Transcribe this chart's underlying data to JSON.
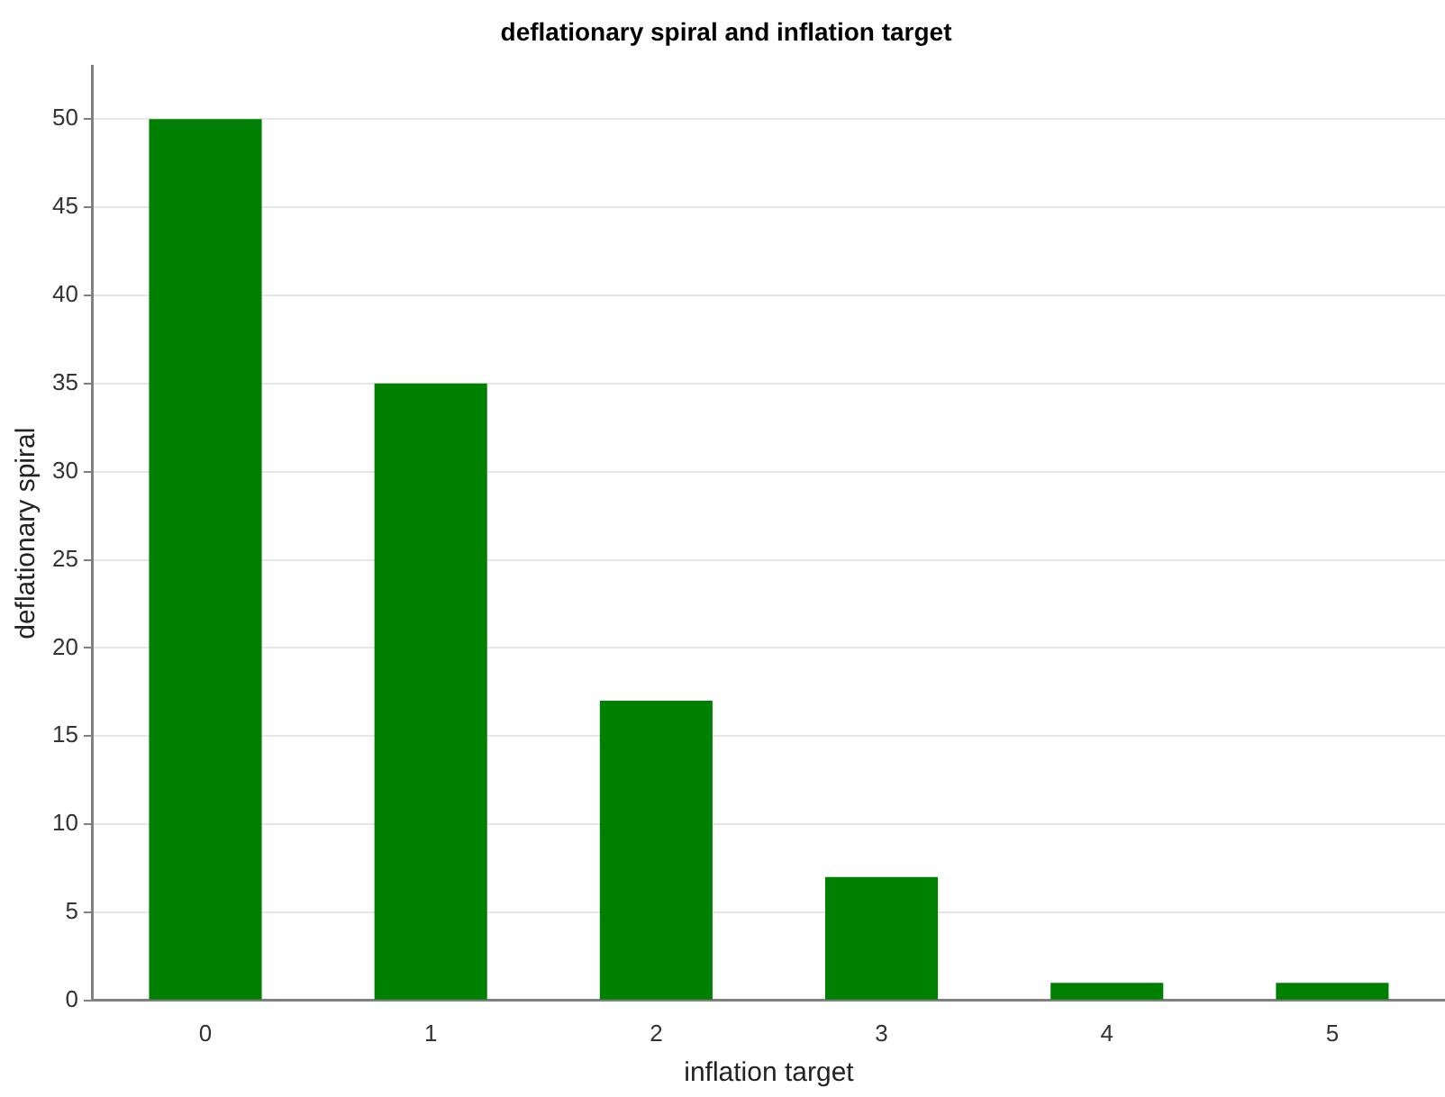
{
  "chart_data": {
    "type": "bar",
    "title": "deflationary spiral and inflation target",
    "xlabel": "inflation target",
    "ylabel": "deflationary spiral",
    "categories": [
      "0",
      "1",
      "2",
      "3",
      "4",
      "5"
    ],
    "values": [
      50,
      35,
      17,
      7,
      1,
      1
    ],
    "color": "#008000",
    "ylim": [
      0,
      53
    ],
    "yticks": [
      0,
      5,
      10,
      15,
      20,
      25,
      30,
      35,
      40,
      45,
      50
    ],
    "grid": "y",
    "legend": false
  }
}
